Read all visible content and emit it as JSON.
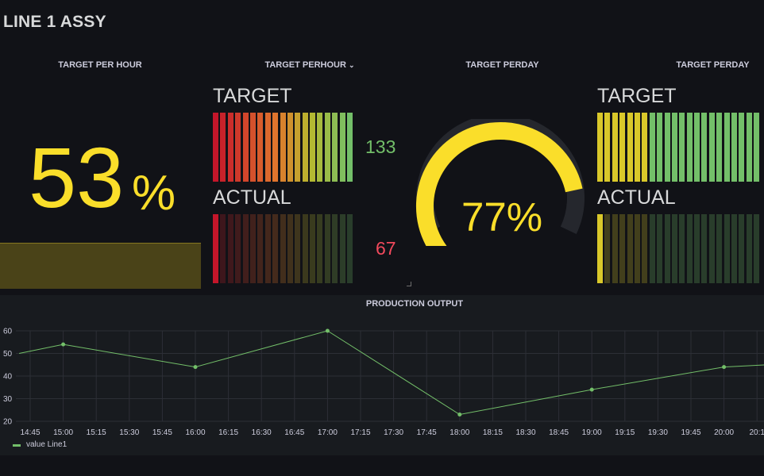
{
  "dashboard": {
    "title": "LINE 1 ASSY"
  },
  "panel1": {
    "title": "TARGET PER HOUR",
    "value": "53",
    "unit": "%",
    "fill_fraction": 0.53,
    "color": "#fade2a"
  },
  "panel2": {
    "title": "TARGET PERHOUR",
    "menu_icon": "chevron-down-icon",
    "target_label": "TARGET",
    "target_value": "133",
    "actual_label": "ACTUAL",
    "actual_value": "67",
    "target_fill": 1.0,
    "actual_fill": 0.05,
    "target_color": "#73bf69",
    "actual_color": "#f2495c"
  },
  "panel3": {
    "title": "TARGET PERDAY",
    "value": "77",
    "unit": "%",
    "gauge_fraction": 0.77,
    "color": "#fade2a"
  },
  "panel4": {
    "title": "TARGET PERDAY",
    "target_label": "TARGET",
    "actual_label": "ACTUAL",
    "target_fill": 1.0,
    "actual_fill": 0.05
  },
  "chart_data": {
    "type": "line",
    "title": "PRODUCTION OUTPUT",
    "x_ticks": [
      "14:45",
      "15:00",
      "15:15",
      "15:30",
      "15:45",
      "16:00",
      "16:15",
      "16:30",
      "16:45",
      "17:00",
      "17:15",
      "17:30",
      "17:45",
      "18:00",
      "18:15",
      "18:30",
      "18:45",
      "19:00",
      "19:15",
      "19:30",
      "19:45",
      "20:00",
      "20:1"
    ],
    "y_ticks": [
      "20",
      "30",
      "40",
      "50",
      "60"
    ],
    "ylim": [
      20,
      60
    ],
    "series": [
      {
        "name": "value Line1",
        "color": "#73bf69",
        "x": [
          "14:40",
          "15:00",
          "16:00",
          "17:00",
          "18:00",
          "19:00",
          "20:00",
          "20:20"
        ],
        "y": [
          50,
          54,
          44,
          60,
          23,
          34,
          44,
          45
        ]
      }
    ],
    "legend": "bottom-left",
    "grid": true
  }
}
